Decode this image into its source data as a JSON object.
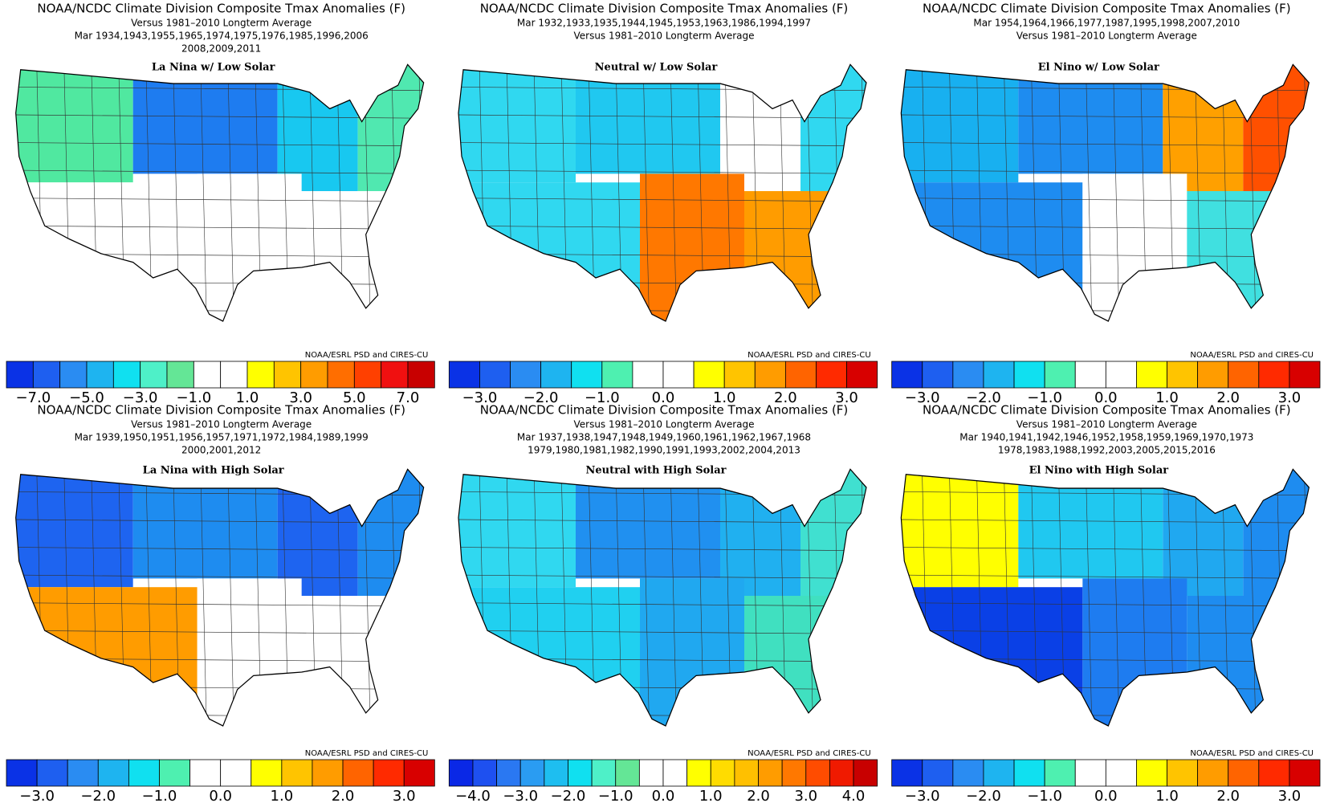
{
  "panels": [
    {
      "lines": [
        "NOAA/NCDC Climate Division Composite Tmax Anomalies (F)",
        "Versus 1981–2010 Longterm Average",
        "Mar   1934,1943,1955,1965,1974,1975,1976,1985,1996,2006",
        "2008,2009,2011"
      ],
      "label": "La Nina w/ Low Solar",
      "credit": "NOAA/ESRL PSD and CIRES-CU",
      "region_colors": [
        "#50e8a0",
        "#1e7cf0",
        "#18c8f0",
        "#50e8b0",
        "#ffffff",
        "#ffffff",
        "#ffffff"
      ],
      "colorbar": {
        "colors": [
          "#0a32e6",
          "#1e5ff0",
          "#2a8cf2",
          "#1eb4f0",
          "#10e0f0",
          "#4ef0c8",
          "#64e696",
          "#ffffff",
          "#ffffff",
          "#ffff00",
          "#ffc400",
          "#ff9c00",
          "#ff6e00",
          "#ff4000",
          "#f01010",
          "#c80000"
        ],
        "labels": [
          "−7.0",
          "−5.0",
          "−3.0",
          "−1.0",
          "1.0",
          "3.0",
          "5.0",
          "7.0"
        ]
      }
    },
    {
      "lines": [
        "NOAA/NCDC Climate Division Composite Tmax Anomalies (F)",
        "Mar   1932,1933,1935,1944,1945,1953,1963,1986,1994,1997",
        "Versus 1981–2010 Longterm Average"
      ],
      "label": "Neutral w/ Low Solar",
      "credit": "NOAA/ESRL PSD and CIRES-CU",
      "region_colors": [
        "#30d8f0",
        "#20c8f0",
        "#ffffff",
        "#30d8f0",
        "#30d8f0",
        "#ff7800",
        "#ff9c00"
      ],
      "colorbar": {
        "colors": [
          "#0a32e6",
          "#1e5ff0",
          "#2a8cf2",
          "#1eb4f0",
          "#10e0f0",
          "#4ef0b0",
          "#ffffff",
          "#ffffff",
          "#ffff00",
          "#ffc400",
          "#ff9c00",
          "#ff6400",
          "#ff2a00",
          "#d80000"
        ],
        "labels": [
          "−3.0",
          "−2.0",
          "−1.0",
          "0.0",
          "1.0",
          "2.0",
          "3.0"
        ]
      }
    },
    {
      "lines": [
        "NOAA/NCDC Climate Division Composite Tmax Anomalies (F)",
        "Mar   1954,1964,1966,1977,1987,1995,1998,2007,2010",
        "Versus 1981–2010 Longterm Average"
      ],
      "label": "El Nino w/ Low Solar",
      "credit": "NOAA/ESRL PSD and CIRES-CU",
      "region_colors": [
        "#18b0f0",
        "#1e8cf0",
        "#ffa000",
        "#ff5000",
        "#1e8cf0",
        "#ffffff",
        "#40e0e0"
      ],
      "colorbar": {
        "colors": [
          "#0a32e6",
          "#1e5ff0",
          "#2a8cf2",
          "#1eb4f0",
          "#10e0f0",
          "#4ef0b0",
          "#ffffff",
          "#ffffff",
          "#ffff00",
          "#ffc400",
          "#ff9c00",
          "#ff6400",
          "#ff2a00",
          "#d80000"
        ],
        "labels": [
          "−3.0",
          "−2.0",
          "−1.0",
          "0.0",
          "1.0",
          "2.0",
          "3.0"
        ]
      }
    },
    {
      "lines": [
        "NOAA/NCDC Climate Division Composite Tmax Anomalies (F)",
        "Versus 1981–2010 Longterm Average",
        "Mar   1939,1950,1951,1956,1957,1971,1972,1984,1989,1999",
        "2000,2001,2012"
      ],
      "label": "La Nina with High Solar",
      "credit": "NOAA/ESRL PSD and CIRES-CU",
      "region_colors": [
        "#1e64f0",
        "#1e8cf0",
        "#1e64f0",
        "#1e8cf0",
        "#ff9c00",
        "#ffffff",
        "#ffffff"
      ],
      "colorbar": {
        "colors": [
          "#0a32e6",
          "#1e5ff0",
          "#2a8cf2",
          "#1eb4f0",
          "#10e0f0",
          "#4ef0b0",
          "#ffffff",
          "#ffffff",
          "#ffff00",
          "#ffc400",
          "#ff9c00",
          "#ff6400",
          "#ff2a00",
          "#d80000"
        ],
        "labels": [
          "−3.0",
          "−2.0",
          "−1.0",
          "0.0",
          "1.0",
          "2.0",
          "3.0"
        ]
      }
    },
    {
      "lines": [
        "NOAA/NCDC Climate Division Composite Tmax Anomalies (F)",
        "Versus 1981–2010 Longterm Average",
        "Mar   1937,1938,1947,1948,1949,1960,1961,1962,1967,1968",
        "1979,1980,1981,1982,1990,1991,1993,2002,2004,2013"
      ],
      "label": "Neutral with High Solar",
      "credit": "NOAA/ESRL PSD and CIRES-CU",
      "region_colors": [
        "#30d8f0",
        "#2090f0",
        "#20b0f0",
        "#40e0d0",
        "#20d0f0",
        "#20a8f0",
        "#40e0c0"
      ],
      "colorbar": {
        "colors": [
          "#0a28e6",
          "#1e50f0",
          "#2a78f2",
          "#2a9cf2",
          "#1ebef0",
          "#10e0f0",
          "#4ef0c8",
          "#64e696",
          "#ffffff",
          "#ffffff",
          "#ffff00",
          "#ffdc00",
          "#ffc000",
          "#ff9c00",
          "#ff7800",
          "#ff4c00",
          "#f01a00",
          "#c80000"
        ],
        "labels": [
          "−4.0",
          "−3.0",
          "−2.0",
          "−1.0",
          "0.0",
          "1.0",
          "2.0",
          "3.0",
          "4.0"
        ]
      }
    },
    {
      "lines": [
        "NOAA/NCDC Climate Division Composite Tmax Anomalies (F)",
        "Versus 1981–2010 Longterm Average",
        "Mar   1940,1941,1942,1946,1952,1958,1959,1969,1970,1973",
        "1978,1983,1988,1992,2003,2005,2015,2016"
      ],
      "label": "El Nino with High Solar",
      "credit": "NOAA/ESRL PSD and CIRES-CU",
      "region_colors": [
        "#ffff00",
        "#20c8f0",
        "#20a8f0",
        "#1e8cf0",
        "#0a40e6",
        "#1e7cf0",
        "#1e8cf0"
      ],
      "colorbar": {
        "colors": [
          "#0a32e6",
          "#1e5ff0",
          "#2a8cf2",
          "#1eb4f0",
          "#10e0f0",
          "#4ef0b0",
          "#ffffff",
          "#ffffff",
          "#ffff00",
          "#ffc400",
          "#ff9c00",
          "#ff6400",
          "#ff2a00",
          "#d80000"
        ],
        "labels": [
          "−3.0",
          "−2.0",
          "−1.0",
          "0.0",
          "1.0",
          "2.0",
          "3.0"
        ]
      }
    }
  ]
}
